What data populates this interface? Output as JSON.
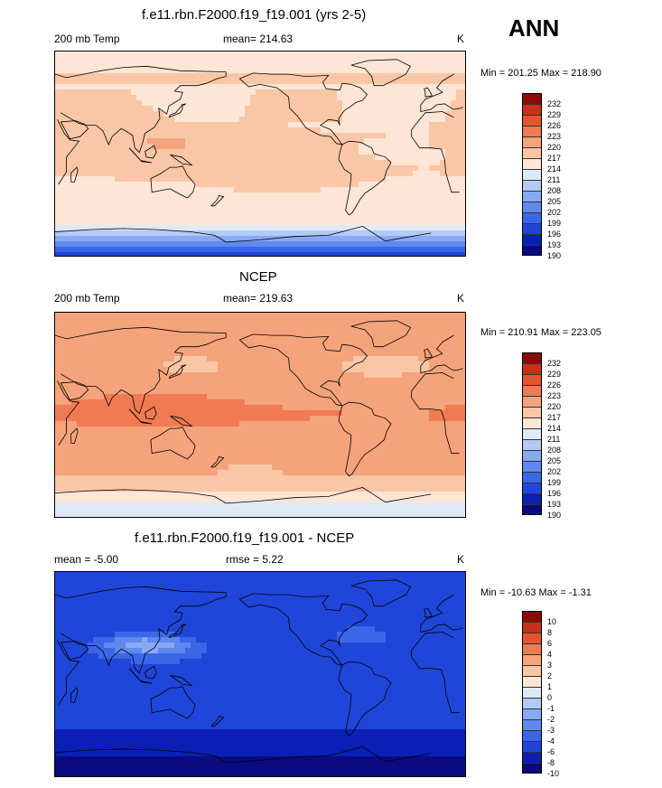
{
  "annotation": "ANN",
  "panels": [
    {
      "title": "f.e11.rbn.F2000.f19_f19.001 (yrs 2-5)",
      "left_label": "200 mb Temp",
      "center_label": "mean= 214.63",
      "right_label": "K",
      "minmax": "Min = 201.25 Max = 218.90",
      "colorbar": [
        "232",
        "229",
        "226",
        "223",
        "220",
        "217",
        "214",
        "211",
        "208",
        "205",
        "202",
        "199",
        "196",
        "193",
        "190"
      ],
      "field": "model"
    },
    {
      "title": "NCEP",
      "left_label": "200 mb Temp",
      "center_label": "mean= 219.63",
      "right_label": "K",
      "minmax": "Min = 210.91 Max = 223.05",
      "colorbar": [
        "232",
        "229",
        "226",
        "223",
        "220",
        "217",
        "214",
        "211",
        "208",
        "205",
        "202",
        "199",
        "196",
        "193",
        "190"
      ],
      "field": "obs"
    },
    {
      "title": "f.e11.rbn.F2000.f19_f19.001 - NCEP",
      "left_label": "mean =  -5.00",
      "center_label": "rmse =   5.22",
      "right_label": "K",
      "minmax": "Min = -10.63 Max =  -1.31",
      "colorbar": [
        "10",
        "8",
        "6",
        "4",
        "3",
        "2",
        "1",
        "0",
        "-1",
        "-2",
        "-3",
        "-4",
        "-6",
        "-8",
        "-10"
      ],
      "field": "diff"
    }
  ],
  "colors": {
    "scale": [
      "#0a0a80",
      "#0a1fb4",
      "#1f46d9",
      "#3a66e8",
      "#5f89f0",
      "#87aaf3",
      "#b2cbf6",
      "#dfeaf9",
      "#fde6d5",
      "#f9c6a6",
      "#f5a37c",
      "#f07b52",
      "#e4552d",
      "#c8301a",
      "#8e0a06"
    ],
    "land_line": "#000000"
  }
}
